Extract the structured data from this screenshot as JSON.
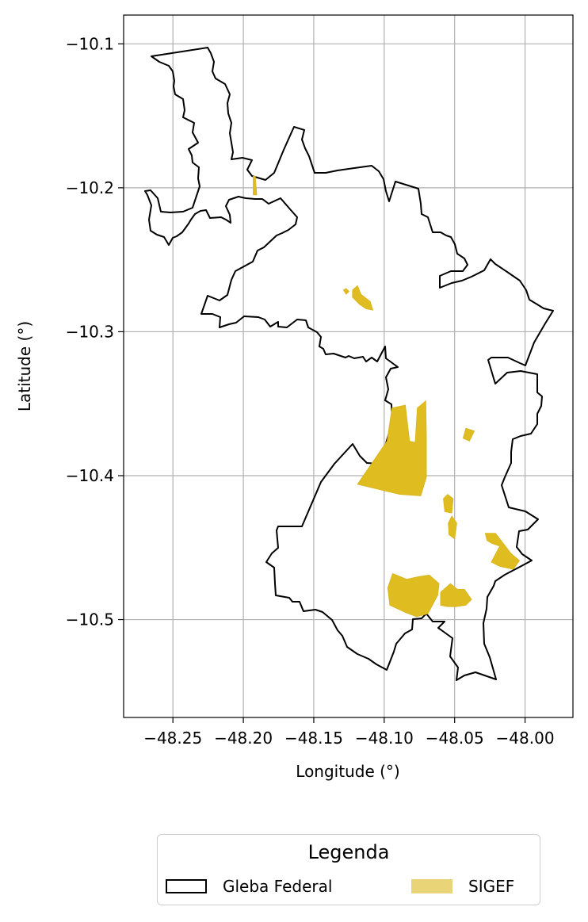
{
  "chart_data": {
    "type": "map",
    "xlabel": "Longitude (°)",
    "ylabel": "Latitude (°)",
    "xlim": [
      -48.285,
      -47.966
    ],
    "ylim": [
      -10.568,
      -10.08
    ],
    "xticks": [
      {
        "value": -48.25,
        "label": "−48.25"
      },
      {
        "value": -48.2,
        "label": "−48.20"
      },
      {
        "value": -48.15,
        "label": "−48.15"
      },
      {
        "value": -48.1,
        "label": "−48.10"
      },
      {
        "value": -48.05,
        "label": "−48.05"
      },
      {
        "value": -48.0,
        "label": "−48.00"
      }
    ],
    "yticks": [
      {
        "value": -10.1,
        "label": "−10.1"
      },
      {
        "value": -10.2,
        "label": "−10.2"
      },
      {
        "value": -10.3,
        "label": "−10.3"
      },
      {
        "value": -10.4,
        "label": "−10.4"
      },
      {
        "value": -10.5,
        "label": "−10.5"
      }
    ],
    "grid": true,
    "legend": {
      "title": "Legenda",
      "placement": "bottom-center",
      "columns": 2,
      "entries": [
        {
          "label": "Gleba Federal",
          "style": "outline",
          "color": "#000000"
        },
        {
          "label": "SIGEF",
          "style": "fill",
          "color": "#e9d477"
        }
      ]
    },
    "series": [
      {
        "name": "Gleba Federal",
        "kind": "outline",
        "stroke": "#000000",
        "polygons": [
          [
            [
              -48.2456,
              -10.107
            ],
            [
              -48.2207,
              -10.103
            ],
            [
              -48.2195,
              -10.109
            ],
            [
              -48.217,
              -10.115
            ],
            [
              -48.2161,
              -10.12
            ],
            [
              -48.2143,
              -10.127
            ],
            [
              -48.2113,
              -10.134
            ],
            [
              -48.2107,
              -10.14
            ],
            [
              -48.2092,
              -10.146
            ],
            [
              -48.2096,
              -10.151
            ],
            [
              -48.2074,
              -10.155
            ],
            [
              -48.2059,
              -10.158
            ],
            [
              -48.2079,
              -10.163
            ],
            [
              -48.2088,
              -10.168
            ],
            [
              -48.2064,
              -10.173
            ],
            [
              -48.2042,
              -10.178
            ],
            [
              -48.2036,
              -10.183
            ],
            [
              -48.2049,
              -10.188
            ],
            [
              -48.2049,
              -10.193
            ],
            [
              -48.2045,
              -10.199
            ],
            [
              -48.2028,
              -10.204
            ],
            [
              -48.2036,
              -10.208
            ],
            [
              -48.2021,
              -10.211
            ],
            [
              -48.2015,
              -10.216
            ],
            [
              -48.2035,
              -10.217
            ],
            [
              -48.2061,
              -10.218
            ],
            [
              -48.2079,
              -10.215
            ],
            [
              -48.2079,
              -10.21
            ],
            [
              -48.2094,
              -10.206
            ],
            [
              -48.2128,
              -10.209
            ],
            [
              -48.2167,
              -10.211
            ],
            [
              -48.2204,
              -10.213
            ],
            [
              -48.2242,
              -10.216
            ],
            [
              -48.2263,
              -10.22
            ],
            [
              -48.2282,
              -10.225
            ],
            [
              -48.2308,
              -10.227
            ],
            [
              -48.2336,
              -10.23
            ],
            [
              -48.2363,
              -10.233
            ],
            [
              -48.2391,
              -10.236
            ],
            [
              -48.2418,
              -10.239
            ],
            [
              -48.2443,
              -10.241
            ],
            [
              -48.2477,
              -10.241
            ],
            [
              -48.2511,
              -10.237
            ],
            [
              -48.2531,
              -10.232
            ],
            [
              -48.2561,
              -10.228
            ],
            [
              -48.2587,
              -10.225
            ],
            [
              -48.2603,
              -10.22
            ],
            [
              -48.2623,
              -10.214
            ],
            [
              -48.2645,
              -10.208
            ],
            [
              -48.2677,
              -10.202
            ],
            [
              -48.2723,
              -10.201
            ],
            [
              -48.2737,
              -10.208
            ],
            [
              -48.2716,
              -10.214
            ],
            [
              -48.2712,
              -10.22
            ],
            [
              -48.2708,
              -10.226
            ],
            [
              -48.2701,
              -10.231
            ],
            [
              -48.2723,
              -10.232
            ],
            [
              -48.2752,
              -10.227
            ],
            [
              -48.2775,
              -10.221
            ],
            [
              -48.278,
              -10.214
            ],
            [
              -48.276,
              -10.208
            ],
            [
              -48.2729,
              -10.204
            ],
            [
              -48.27,
              -10.203
            ],
            [
              -48.274,
              -10.2
            ]
          ]
        ]
      },
      {
        "name": "SIGEF",
        "kind": "fill",
        "fill": "#dfbc20",
        "polygons": [
          [
            [
              -48.193,
              -10.192
            ],
            [
              -48.1915,
              -10.192
            ],
            [
              -48.1905,
              -10.205
            ],
            [
              -48.193,
              -10.205
            ]
          ],
          [
            [
              -48.1225,
              -10.271
            ],
            [
              -48.119,
              -10.268
            ],
            [
              -48.1165,
              -10.274
            ],
            [
              -48.11,
              -10.279
            ],
            [
              -48.108,
              -10.285
            ],
            [
              -48.113,
              -10.284
            ],
            [
              -48.1175,
              -10.281
            ],
            [
              -48.1225,
              -10.276
            ]
          ],
          [
            [
              -48.129,
              -10.271
            ],
            [
              -48.127,
              -10.27
            ],
            [
              -48.125,
              -10.272
            ],
            [
              -48.127,
              -10.274
            ]
          ],
          [
            [
              -48.119,
              -10.406
            ],
            [
              -48.098,
              -10.376
            ],
            [
              -48.0945,
              -10.353
            ],
            [
              -48.085,
              -10.351
            ],
            [
              -48.082,
              -10.376
            ],
            [
              -48.078,
              -10.377
            ],
            [
              -48.0765,
              -10.353
            ],
            [
              -48.0705,
              -10.348
            ],
            [
              -48.07,
              -10.373
            ],
            [
              -48.07,
              -10.401
            ],
            [
              -48.074,
              -10.414
            ],
            [
              -48.089,
              -10.413
            ],
            [
              -48.106,
              -10.409
            ]
          ],
          [
            [
              -48.042,
              -10.367
            ],
            [
              -48.036,
              -10.369
            ],
            [
              -48.0395,
              -10.376
            ],
            [
              -48.044,
              -10.374
            ]
          ],
          [
            [
              -48.055,
              -10.413
            ],
            [
              -48.051,
              -10.416
            ],
            [
              -48.052,
              -10.426
            ],
            [
              -48.057,
              -10.425
            ],
            [
              -48.058,
              -10.416
            ]
          ],
          [
            [
              -48.052,
              -10.428
            ],
            [
              -48.0485,
              -10.433
            ],
            [
              -48.05,
              -10.444
            ],
            [
              -48.054,
              -10.441
            ],
            [
              -48.0545,
              -10.433
            ]
          ],
          [
            [
              -48.0283,
              -10.44
            ],
            [
              -48.021,
              -10.44
            ],
            [
              -48.01,
              -10.454
            ],
            [
              -48.004,
              -10.459
            ],
            [
              -48.0083,
              -10.465
            ],
            [
              -48.018,
              -10.463
            ],
            [
              -48.024,
              -10.46
            ],
            [
              -48.018,
              -10.449
            ],
            [
              -48.0238,
              -10.447
            ],
            [
              -48.027,
              -10.445
            ]
          ],
          [
            [
              -48.094,
              -10.468
            ],
            [
              -48.0975,
              -10.478
            ],
            [
              -48.096,
              -10.49
            ],
            [
              -48.085,
              -10.495
            ],
            [
              -48.077,
              -10.498
            ],
            [
              -48.069,
              -10.496
            ],
            [
              -48.062,
              -10.483
            ],
            [
              -48.061,
              -10.475
            ],
            [
              -48.068,
              -10.469
            ],
            [
              -48.075,
              -10.47
            ],
            [
              -48.084,
              -10.472
            ]
          ],
          [
            [
              -48.06,
              -10.481
            ],
            [
              -48.053,
              -10.475
            ],
            [
              -48.048,
              -10.479
            ],
            [
              -48.043,
              -10.479
            ],
            [
              -48.038,
              -10.486
            ],
            [
              -48.042,
              -10.49
            ],
            [
              -48.049,
              -10.491
            ],
            [
              -48.055,
              -10.491
            ],
            [
              -48.06,
              -10.49
            ]
          ]
        ]
      }
    ]
  }
}
